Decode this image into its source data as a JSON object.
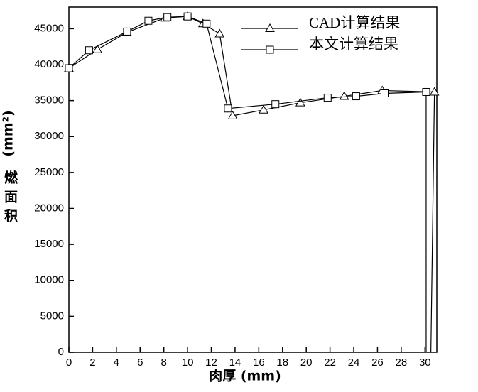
{
  "chart_data": {
    "type": "line",
    "x_label": "肉厚 (mm)",
    "y_label": "燃面积",
    "y_unit": "(mm²)",
    "xlim": [
      0,
      31
    ],
    "xticks": [
      0,
      2,
      4,
      6,
      8,
      10,
      12,
      14,
      16,
      18,
      20,
      22,
      24,
      26,
      28,
      30
    ],
    "ylim": [
      0,
      48000
    ],
    "yticks": [
      0,
      5000,
      10000,
      15000,
      20000,
      25000,
      30000,
      35000,
      40000,
      45000
    ],
    "series": [
      {
        "name": "CAD计算结果",
        "color": "#000000",
        "marker": "triangle",
        "x": [
          0,
          2.4,
          4.9,
          8.1,
          10,
          11.3,
          12.7,
          13.8,
          16.4,
          19.5,
          23.2,
          26.4,
          30.8,
          30.5
        ],
        "values": [
          39500,
          42100,
          44500,
          46500,
          46700,
          45700,
          44300,
          32900,
          33700,
          34700,
          35600,
          36400,
          36200,
          0
        ]
      },
      {
        "name": "本文计算结果",
        "color": "#000000",
        "marker": "square",
        "x": [
          0,
          1.7,
          4.9,
          6.7,
          8.3,
          10,
          11.6,
          13.4,
          17.4,
          21.8,
          24.2,
          26.6,
          30.1,
          30.1
        ],
        "values": [
          39500,
          42000,
          44600,
          46100,
          46600,
          46700,
          45700,
          33900,
          34500,
          35400,
          35600,
          36000,
          36200,
          0
        ]
      }
    ]
  }
}
